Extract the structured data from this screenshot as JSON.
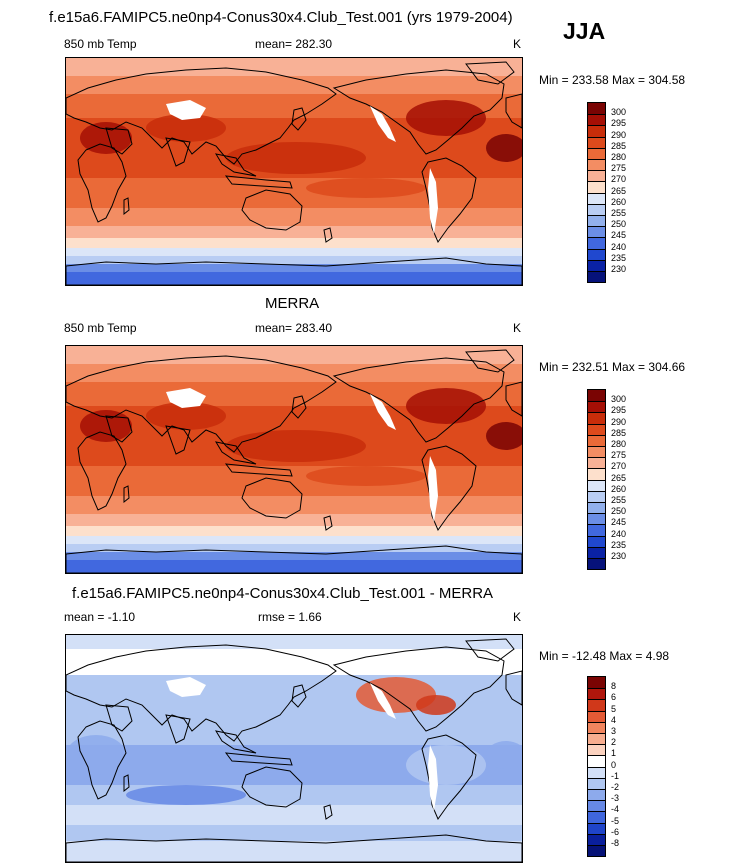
{
  "figure": {
    "title": "f.e15a6.FAMIPC5.ne0np4-Conus30x4.Club_Test.001 (yrs 1979-2004)",
    "season": "JJA"
  },
  "panels": [
    {
      "id": "model",
      "header_title": "",
      "variable": "850 mb Temp",
      "stat": "mean= 282.30",
      "stat2": "",
      "units": "K",
      "minmax": "Min = 233.58 Max = 304.58",
      "palette": "warm",
      "levels": [
        "300",
        "295",
        "290",
        "285",
        "280",
        "275",
        "270",
        "265",
        "260",
        "255",
        "250",
        "245",
        "240",
        "235",
        "230"
      ]
    },
    {
      "id": "obs",
      "header_title": "MERRA",
      "variable": "850 mb Temp",
      "stat": "mean= 283.40",
      "stat2": "",
      "units": "K",
      "minmax": "Min = 232.51 Max = 304.66",
      "palette": "warm",
      "levels": [
        "300",
        "295",
        "290",
        "285",
        "280",
        "275",
        "270",
        "265",
        "260",
        "255",
        "250",
        "245",
        "240",
        "235",
        "230"
      ]
    },
    {
      "id": "diff",
      "header_title": "f.e15a6.FAMIPC5.ne0np4-Conus30x4.Club_Test.001 - MERRA",
      "variable": "mean =  -1.10",
      "stat": "rmse =   1.66",
      "stat2": "",
      "units": "K",
      "minmax": "Min = -12.48 Max =   4.98",
      "palette": "diff",
      "levels": [
        "8",
        "6",
        "5",
        "4",
        "3",
        "2",
        "1",
        "0",
        "-1",
        "-2",
        "-3",
        "-4",
        "-5",
        "-6",
        "-8"
      ]
    }
  ],
  "colors": {
    "warm": [
      "#7a0403",
      "#a50f05",
      "#c82d0a",
      "#dd4a1c",
      "#ea6a38",
      "#f38d63",
      "#f8b196",
      "#fde0cc",
      "#dce6f8",
      "#b9cdf3",
      "#92b0ec",
      "#6b8ee6",
      "#4168df",
      "#2048cf",
      "#0a22a5",
      "#06127a"
    ],
    "diff": [
      "#7a0403",
      "#b0160c",
      "#d0381a",
      "#e45a35",
      "#f1855e",
      "#f7ad8f",
      "#fbd2bf",
      "#ffffff",
      "#d3e0f7",
      "#b0c7f1",
      "#8daaec",
      "#6688e5",
      "#3f66dd",
      "#1f44c9",
      "#0a1f9c",
      "#061277"
    ],
    "land_mask": "#ffffff",
    "coast": "#000000"
  }
}
